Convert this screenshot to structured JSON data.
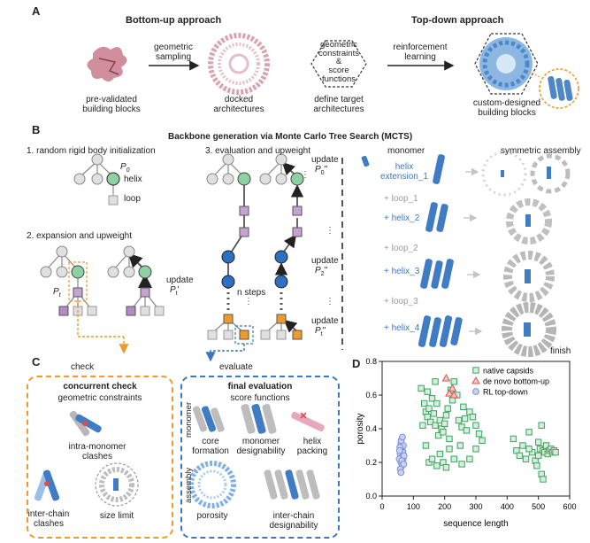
{
  "panel_a": {
    "label": "A",
    "bottom_up_title": "Bottom-up approach",
    "top_down_title": "Top-down approach",
    "prevalidated": [
      "pre-validated",
      "building blocks"
    ],
    "geometric_sampling": [
      "geometric",
      "sampling"
    ],
    "docked": [
      "docked",
      "architectures"
    ],
    "constraints": [
      "geometric",
      "constraints",
      "&",
      "score",
      "functions"
    ],
    "define_target": [
      "define target",
      "architectures"
    ],
    "rl": [
      "reinforcement",
      "learning"
    ],
    "custom": [
      "custom-designed",
      "building blocks"
    ]
  },
  "panel_b": {
    "label": "B",
    "title": "Backbone generation via Monte Carlo Tree Search (MCTS)",
    "step1": "1. random rigid body initialization",
    "step2": "2. expansion and upweight",
    "step3": "3. evaluation and upweight",
    "p0": "P",
    "p0_sub": "0",
    "pt": "P",
    "pt_sub": "t",
    "helix": "helix",
    "loop": "loop",
    "update": "update",
    "update_pt": "P",
    "update_pt_sub": "t",
    "update_pt_mark": "'",
    "update_p0_mark": "''",
    "update_p2_sub": "2",
    "update_p2_mark": "''",
    "update_pt2_mark": "''",
    "n_steps": "n steps",
    "monomer": "monomer",
    "symmetric_assembly": "symmetric assembly",
    "sequence_steps": [
      {
        "text": "helix",
        "text2": "extension_1",
        "kind": "blue"
      },
      {
        "text": "+ loop_1",
        "kind": "gray"
      },
      {
        "text": "+ helix_2",
        "kind": "blue"
      },
      {
        "text": "+ loop_2",
        "kind": "gray"
      },
      {
        "text": "+ helix_3",
        "kind": "blue"
      },
      {
        "text": "+ loop_3",
        "kind": "gray"
      },
      {
        "text": "+ helix_4",
        "kind": "blue"
      }
    ],
    "finish": "finish"
  },
  "panel_c": {
    "label": "C",
    "check": "check",
    "evaluate": "evaluate",
    "concurrent_title": "concurrent check",
    "concurrent_sub": "geometric constraints",
    "intra": [
      "intra-monomer",
      "clashes"
    ],
    "inter_clash": [
      "inter-chain",
      "clashes"
    ],
    "size_limit": "size limit",
    "final_title": "final evaluation",
    "final_sub": "score functions",
    "monomer_label": "monomer",
    "assembly_label": "assembly",
    "core": [
      "core",
      "formation"
    ],
    "monomer_design": [
      "monomer",
      "designability"
    ],
    "helix_packing": [
      "helix",
      "packing"
    ],
    "porosity": "porosity",
    "inter_design": [
      "inter-chain",
      "designability"
    ]
  },
  "panel_d": {
    "label": "D"
  },
  "chart_data": {
    "type": "scatter",
    "xlabel": "sequence length",
    "ylabel": "porosity",
    "xlim": [
      0,
      600
    ],
    "ylim": [
      0,
      0.8
    ],
    "xticks": [
      "0",
      "100",
      "200",
      "300",
      "400",
      "500",
      "600"
    ],
    "yticks": [
      "0.0",
      "0.2",
      "0.4",
      "0.6",
      "0.8"
    ],
    "legend_position": "top-right",
    "colors": {
      "native": "#3aa35e",
      "denovo": "#d9534f",
      "rl": "#7b8fd9"
    },
    "series": [
      {
        "name": "native capsids",
        "marker": "square",
        "points": [
          [
            125,
            0.64
          ],
          [
            135,
            0.55
          ],
          [
            140,
            0.5
          ],
          [
            145,
            0.47
          ],
          [
            150,
            0.52
          ],
          [
            155,
            0.44
          ],
          [
            160,
            0.58
          ],
          [
            165,
            0.49
          ],
          [
            170,
            0.42
          ],
          [
            175,
            0.55
          ],
          [
            180,
            0.36
          ],
          [
            185,
            0.45
          ],
          [
            190,
            0.4
          ],
          [
            195,
            0.38
          ],
          [
            200,
            0.43
          ],
          [
            205,
            0.48
          ],
          [
            210,
            0.52
          ],
          [
            215,
            0.34
          ],
          [
            220,
            0.63
          ],
          [
            225,
            0.57
          ],
          [
            230,
            0.68
          ],
          [
            240,
            0.6
          ],
          [
            245,
            0.45
          ],
          [
            250,
            0.3
          ],
          [
            255,
            0.41
          ],
          [
            260,
            0.53
          ],
          [
            265,
            0.46
          ],
          [
            270,
            0.39
          ],
          [
            280,
            0.5
          ],
          [
            290,
            0.47
          ],
          [
            300,
            0.42
          ],
          [
            310,
            0.37
          ],
          [
            320,
            0.33
          ],
          [
            150,
            0.2
          ],
          [
            160,
            0.22
          ],
          [
            175,
            0.18
          ],
          [
            185,
            0.25
          ],
          [
            195,
            0.2
          ],
          [
            205,
            0.17
          ],
          [
            215,
            0.28
          ],
          [
            230,
            0.22
          ],
          [
            255,
            0.19
          ],
          [
            280,
            0.22
          ],
          [
            300,
            0.28
          ],
          [
            140,
            0.3
          ],
          [
            130,
            0.42
          ],
          [
            145,
            0.62
          ],
          [
            170,
            0.68
          ],
          [
            420,
            0.34
          ],
          [
            430,
            0.27
          ],
          [
            440,
            0.24
          ],
          [
            450,
            0.3
          ],
          [
            460,
            0.22
          ],
          [
            470,
            0.38
          ],
          [
            480,
            0.26
          ],
          [
            490,
            0.21
          ],
          [
            500,
            0.32
          ],
          [
            505,
            0.28
          ],
          [
            510,
            0.42
          ],
          [
            515,
            0.27
          ],
          [
            520,
            0.26
          ],
          [
            525,
            0.3
          ],
          [
            530,
            0.25
          ],
          [
            535,
            0.27
          ],
          [
            540,
            0.28
          ],
          [
            545,
            0.26
          ],
          [
            550,
            0.27
          ],
          [
            555,
            0.26
          ],
          [
            510,
            0.13
          ],
          [
            515,
            0.1
          ],
          [
            470,
            0.28
          ],
          [
            495,
            0.18
          ],
          [
            500,
            0.24
          ]
        ]
      },
      {
        "name": "de novo bottom-up",
        "marker": "triangle",
        "points": [
          [
            205,
            0.7
          ],
          [
            215,
            0.61
          ],
          [
            225,
            0.64
          ],
          [
            230,
            0.6
          ]
        ]
      },
      {
        "name": "RL top-down",
        "marker": "circle",
        "points": [
          [
            60,
            0.31
          ],
          [
            62,
            0.28
          ],
          [
            65,
            0.27
          ],
          [
            58,
            0.25
          ],
          [
            63,
            0.23
          ],
          [
            67,
            0.22
          ],
          [
            60,
            0.2
          ],
          [
            64,
            0.18
          ],
          [
            58,
            0.16
          ],
          [
            66,
            0.26
          ],
          [
            70,
            0.24
          ],
          [
            55,
            0.22
          ],
          [
            68,
            0.3
          ],
          [
            61,
            0.33
          ],
          [
            57,
            0.29
          ],
          [
            65,
            0.35
          ],
          [
            60,
            0.14
          ],
          [
            63,
            0.21
          ],
          [
            69,
            0.19
          ],
          [
            56,
            0.27
          ]
        ]
      }
    ]
  }
}
